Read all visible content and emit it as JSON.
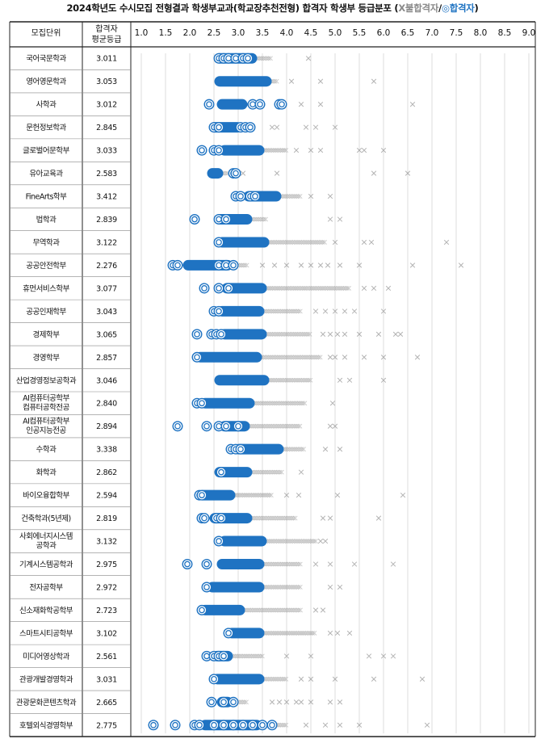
{
  "title": {
    "main": "2024학년도 수시모집 전형결과 학생부교과(학교장추천전형) 합격자 학생부 등급분포",
    "legend_open": "(",
    "legend_fail": "X불합격자",
    "legend_sep": "/",
    "legend_pass": "◎합격자",
    "legend_close": ")"
  },
  "colors": {
    "pass": "#1f73c2",
    "fail": "#9a9a9a",
    "grid": "#cfcfcf",
    "border": "#222222"
  },
  "chart_data": {
    "type": "scatter",
    "columns": {
      "dept": "모집단위",
      "avg_line1": "합격자",
      "avg_line2": "평균등급"
    },
    "x_ticks": [
      "1.0",
      "1.5",
      "2.0",
      "2.5",
      "3.0",
      "3.5",
      "4.0",
      "4.5",
      "5.0",
      "5.5",
      "6.0",
      "6.5",
      "7.0",
      "7.5",
      "8.0",
      "8.5",
      "9.0"
    ],
    "xlim": [
      1.0,
      9.0
    ],
    "legend": {
      "fail": "X불합격자",
      "pass": "◎합격자"
    },
    "rows": [
      {
        "dept": [
          "국어국문학과"
        ],
        "avg": "3.011",
        "pass": {
          "min": 2.6,
          "max": 3.3,
          "iso": [
            2.6,
            2.7,
            2.8,
            2.95,
            3.1,
            3.2
          ]
        },
        "fail": {
          "min": 3.3,
          "max": 3.7,
          "iso": [
            4.45
          ]
        }
      },
      {
        "dept": [
          "영어영문학과"
        ],
        "avg": "3.053",
        "pass": {
          "min": 2.6,
          "max": 3.6,
          "iso": []
        },
        "fail": {
          "min": 3.5,
          "max": 3.8,
          "iso": [
            4.1,
            4.7,
            5.8
          ]
        }
      },
      {
        "dept": [
          "사학과"
        ],
        "avg": "3.012",
        "pass": {
          "min": 2.65,
          "max": 3.1,
          "iso": [
            2.4,
            3.3,
            3.45,
            3.85,
            3.9
          ]
        },
        "fail": {
          "min": 3.1,
          "max": 3.5,
          "iso": [
            4.3,
            4.7,
            6.6
          ]
        }
      },
      {
        "dept": [
          "문헌정보학과"
        ],
        "avg": "2.845",
        "pass": {
          "min": 2.5,
          "max": 3.0,
          "iso": [
            2.5,
            2.6,
            3.05,
            3.15,
            3.25
          ]
        },
        "fail": {
          "min": 3.0,
          "max": 3.3,
          "iso": [
            3.7,
            3.8,
            4.4,
            4.6,
            5.0
          ]
        }
      },
      {
        "dept": [
          "글로벌어문학부"
        ],
        "avg": "3.033",
        "pass": {
          "min": 2.7,
          "max": 3.45,
          "iso": [
            2.25,
            2.5,
            2.6
          ]
        },
        "fail": {
          "min": 3.4,
          "max": 4.0,
          "iso": [
            4.2,
            4.5,
            4.7,
            5.5,
            5.6,
            6.0
          ]
        }
      },
      {
        "dept": [
          "유아교육과"
        ],
        "avg": "2.583",
        "pass": {
          "min": 2.45,
          "max": 2.6,
          "iso": [
            2.9,
            2.95
          ]
        },
        "fail": {
          "min": 2.6,
          "max": 2.8,
          "iso": [
            3.1,
            3.8,
            5.8,
            6.5
          ]
        }
      },
      {
        "dept": [
          "FineArts학부"
        ],
        "avg": "3.412",
        "pass": {
          "min": 3.2,
          "max": 3.8,
          "iso": [
            2.95,
            3.05,
            3.25,
            3.35
          ]
        },
        "fail": {
          "min": 3.8,
          "max": 4.3,
          "iso": [
            4.5,
            4.9
          ]
        }
      },
      {
        "dept": [
          "법학과"
        ],
        "avg": "2.839",
        "pass": {
          "min": 2.6,
          "max": 3.2,
          "iso": [
            2.1,
            2.6,
            2.75
          ]
        },
        "fail": {
          "min": 3.2,
          "max": 3.6,
          "iso": [
            4.9,
            5.1
          ]
        }
      },
      {
        "dept": [
          "무역학과"
        ],
        "avg": "3.122",
        "pass": {
          "min": 2.65,
          "max": 3.55,
          "iso": [
            2.6
          ]
        },
        "fail": {
          "min": 3.5,
          "max": 4.8,
          "iso": [
            5.0,
            5.6,
            5.75,
            7.3
          ]
        }
      },
      {
        "dept": [
          "공공안전학부"
        ],
        "avg": "2.276",
        "pass": {
          "min": 1.95,
          "max": 2.8,
          "iso": [
            1.65,
            1.75,
            2.6,
            2.75,
            2.9
          ]
        },
        "fail": {
          "min": 2.7,
          "max": 3.2,
          "iso": [
            3.5,
            3.75,
            4.0,
            4.3,
            4.5,
            4.7,
            4.85,
            5.1,
            5.5,
            6.6,
            7.6
          ]
        }
      },
      {
        "dept": [
          "휴먼서비스학부"
        ],
        "avg": "3.077",
        "pass": {
          "min": 2.75,
          "max": 3.5,
          "iso": [
            2.3,
            2.6,
            2.8
          ]
        },
        "fail": {
          "min": 3.45,
          "max": 5.3,
          "iso": [
            5.6,
            5.8,
            6.1
          ]
        }
      },
      {
        "dept": [
          "공공인재학부"
        ],
        "avg": "3.043",
        "pass": {
          "min": 2.65,
          "max": 3.45,
          "iso": [
            2.5,
            2.6
          ]
        },
        "fail": {
          "min": 3.4,
          "max": 4.3,
          "iso": [
            4.6,
            4.8,
            5.0,
            5.2,
            5.4,
            6.0
          ]
        }
      },
      {
        "dept": [
          "경제학부"
        ],
        "avg": "3.065",
        "pass": {
          "min": 2.7,
          "max": 3.5,
          "iso": [
            2.15,
            2.45,
            2.55,
            2.65
          ]
        },
        "fail": {
          "min": 3.45,
          "max": 4.5,
          "iso": [
            4.75,
            4.9,
            5.05,
            5.2,
            5.5,
            5.9,
            6.25,
            6.35
          ]
        }
      },
      {
        "dept": [
          "경영학부"
        ],
        "avg": "2.857",
        "pass": {
          "min": 2.2,
          "max": 3.4,
          "iso": [
            2.15
          ]
        },
        "fail": {
          "min": 3.3,
          "max": 4.7,
          "iso": [
            4.9,
            5.0,
            5.2,
            5.6,
            6.0,
            6.7
          ]
        }
      },
      {
        "dept": [
          "산업경영정보공학과"
        ],
        "avg": "3.046",
        "pass": {
          "min": 2.6,
          "max": 3.55,
          "iso": []
        },
        "fail": {
          "min": 3.5,
          "max": 4.5,
          "iso": [
            5.1,
            5.3,
            6.0
          ]
        }
      },
      {
        "dept": [
          "AI컴퓨터공학부",
          "컴퓨터공학전공"
        ],
        "avg": "2.840",
        "pass": {
          "min": 2.3,
          "max": 3.25,
          "iso": [
            2.15,
            2.25
          ]
        },
        "fail": {
          "min": 3.2,
          "max": 4.4,
          "iso": [
            4.95
          ]
        }
      },
      {
        "dept": [
          "AI컴퓨터공학부",
          "인공지능전공"
        ],
        "avg": "2.894",
        "pass": {
          "min": 2.7,
          "max": 3.15,
          "iso": [
            1.75,
            2.35,
            2.6,
            2.75,
            3.0
          ]
        },
        "fail": {
          "min": 3.1,
          "max": 4.3,
          "iso": [
            4.9,
            5.0
          ]
        }
      },
      {
        "dept": [
          "수학과"
        ],
        "avg": "3.338",
        "pass": {
          "min": 3.0,
          "max": 3.85,
          "iso": [
            2.85,
            2.95,
            3.05
          ]
        },
        "fail": {
          "min": 3.8,
          "max": 4.35,
          "iso": [
            4.8,
            5.1
          ]
        }
      },
      {
        "dept": [
          "화학과"
        ],
        "avg": "2.862",
        "pass": {
          "min": 2.6,
          "max": 3.2,
          "iso": [
            2.65
          ]
        },
        "fail": {
          "min": 3.2,
          "max": 3.9,
          "iso": [
            4.3
          ]
        }
      },
      {
        "dept": [
          "바이오융합학부"
        ],
        "avg": "2.594",
        "pass": {
          "min": 2.25,
          "max": 2.85,
          "iso": [
            2.2,
            2.25
          ]
        },
        "fail": {
          "min": 2.8,
          "max": 3.7,
          "iso": [
            4.0,
            4.25,
            5.05,
            6.4
          ]
        }
      },
      {
        "dept": [
          "건축학과(5년제)"
        ],
        "avg": "2.819",
        "pass": {
          "min": 2.5,
          "max": 3.2,
          "iso": [
            2.25,
            2.3,
            2.55,
            2.65
          ]
        },
        "fail": {
          "min": 3.15,
          "max": 4.2,
          "iso": [
            4.75,
            4.9,
            5.9
          ]
        }
      },
      {
        "dept": [
          "사회에너지시스템",
          "공학과"
        ],
        "avg": "3.132",
        "pass": {
          "min": 2.7,
          "max": 3.5,
          "iso": [
            2.6
          ]
        },
        "fail": {
          "min": 3.5,
          "max": 4.6,
          "iso": [
            4.7,
            4.8
          ]
        }
      },
      {
        "dept": [
          "기계시스템공학과"
        ],
        "avg": "2.975",
        "pass": {
          "min": 2.65,
          "max": 3.45,
          "iso": [
            1.95,
            2.35
          ]
        },
        "fail": {
          "min": 3.4,
          "max": 4.3,
          "iso": [
            4.6,
            4.9,
            5.4,
            6.2
          ]
        }
      },
      {
        "dept": [
          "전자공학부"
        ],
        "avg": "2.972",
        "pass": {
          "min": 2.45,
          "max": 3.45,
          "iso": [
            2.35
          ]
        },
        "fail": {
          "min": 3.4,
          "max": 4.3,
          "iso": [
            4.9,
            5.1
          ]
        }
      },
      {
        "dept": [
          "신소재화학공학부"
        ],
        "avg": "2.723",
        "pass": {
          "min": 2.3,
          "max": 3.05,
          "iso": [
            2.25
          ]
        },
        "fail": {
          "min": 3.0,
          "max": 4.3,
          "iso": [
            4.6,
            4.75
          ]
        }
      },
      {
        "dept": [
          "스마트시티공학부"
        ],
        "avg": "3.102",
        "pass": {
          "min": 2.85,
          "max": 3.45,
          "iso": [
            2.8
          ]
        },
        "fail": {
          "min": 3.4,
          "max": 4.6,
          "iso": [
            4.9,
            5.05,
            5.3
          ]
        }
      },
      {
        "dept": [
          "미디어영상학과"
        ],
        "avg": "2.561",
        "pass": {
          "min": 2.55,
          "max": 2.8,
          "iso": [
            2.35,
            2.5,
            2.6,
            2.7
          ]
        },
        "fail": {
          "min": 2.8,
          "max": 3.5,
          "iso": [
            4.0,
            4.5,
            5.7,
            6.0,
            6.2
          ]
        }
      },
      {
        "dept": [
          "관광개발경영학과"
        ],
        "avg": "3.031",
        "pass": {
          "min": 2.55,
          "max": 3.45,
          "iso": [
            2.5
          ]
        },
        "fail": {
          "min": 3.4,
          "max": 4.0,
          "iso": [
            4.3,
            4.5,
            5.0,
            5.8,
            6.8
          ]
        }
      },
      {
        "dept": [
          "관광문화콘텐츠학과"
        ],
        "avg": "2.665",
        "pass": {
          "min": 2.65,
          "max": 2.8,
          "iso": [
            2.45,
            2.7,
            2.9
          ]
        },
        "fail": {
          "min": 2.8,
          "max": 3.2,
          "iso": [
            3.7,
            3.85,
            4.0,
            4.2,
            4.3,
            4.5,
            4.9,
            5.1
          ]
        }
      },
      {
        "dept": [
          "호텔외식경영학부"
        ],
        "avg": "2.775",
        "pass": {
          "min": 2.3,
          "max": 3.4,
          "iso": [
            1.25,
            1.7,
            2.1,
            2.2,
            2.5,
            2.7,
            2.9,
            3.1,
            3.3,
            3.5,
            3.7
          ]
        },
        "fail": {
          "min": 3.4,
          "max": 4.0,
          "iso": [
            4.4,
            4.8,
            5.1,
            5.5,
            6.9
          ]
        }
      }
    ]
  }
}
